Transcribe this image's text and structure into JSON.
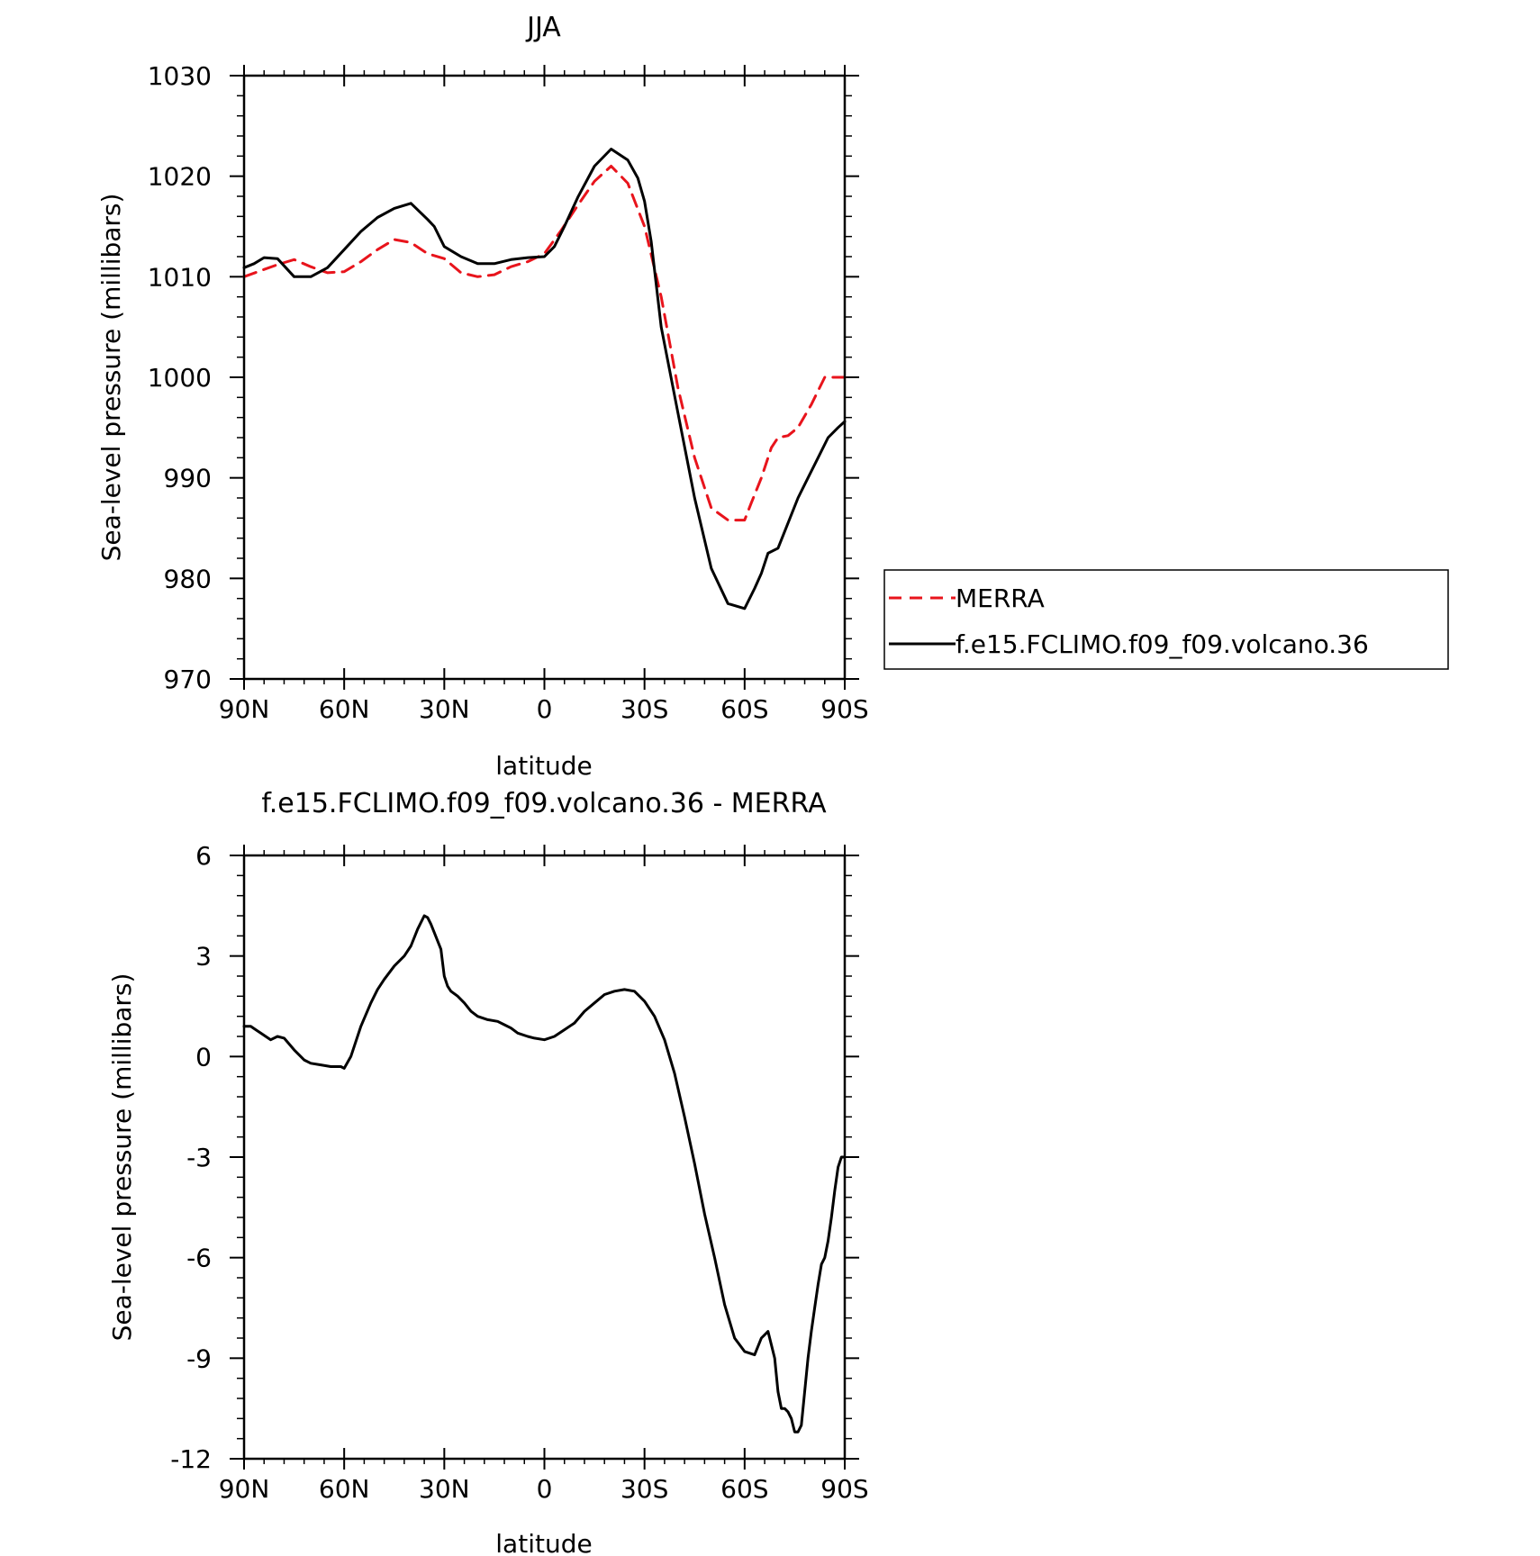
{
  "chart_data": [
    {
      "type": "line",
      "title": "JJA",
      "xlabel": "latitude",
      "ylabel": "Sea-level pressure (millibars)",
      "xlim": [
        90,
        -90
      ],
      "ylim": [
        970,
        1030
      ],
      "xticks": [
        {
          "value": 90,
          "label": "90N"
        },
        {
          "value": 60,
          "label": "60N"
        },
        {
          "value": 30,
          "label": "30N"
        },
        {
          "value": 0,
          "label": "0"
        },
        {
          "value": -30,
          "label": "30S"
        },
        {
          "value": -60,
          "label": "60S"
        },
        {
          "value": -90,
          "label": "90S"
        }
      ],
      "yticks": [
        {
          "value": 1030,
          "label": "1030"
        },
        {
          "value": 1020,
          "label": "1020"
        },
        {
          "value": 1010,
          "label": "1010"
        },
        {
          "value": 1000,
          "label": "1000"
        },
        {
          "value": 990,
          "label": "990"
        },
        {
          "value": 980,
          "label": "980"
        },
        {
          "value": 970,
          "label": "970"
        }
      ],
      "grid": false,
      "legend_position": "right",
      "series": [
        {
          "name": "MERRA",
          "color": "#e8141c",
          "dash": "dashed",
          "x": [
            90,
            85,
            80,
            75,
            70,
            65,
            60,
            55,
            50,
            45,
            40,
            35,
            30,
            25,
            20,
            15,
            10,
            5,
            0,
            -5,
            -10,
            -15,
            -20,
            -25,
            -30,
            -35,
            -40,
            -45,
            -50,
            -55,
            -60,
            -62,
            -65,
            -68,
            -70,
            -73,
            -76,
            -80,
            -84,
            -87,
            -90
          ],
          "y": [
            1010.0,
            1010.6,
            1011.2,
            1011.7,
            1011.0,
            1010.4,
            1010.5,
            1011.5,
            1012.7,
            1013.7,
            1013.4,
            1012.3,
            1011.8,
            1010.4,
            1010.0,
            1010.2,
            1011.0,
            1011.5,
            1012.3,
            1014.6,
            1017.1,
            1019.5,
            1021.0,
            1019.3,
            1015.0,
            1008.0,
            999.0,
            992.0,
            987.0,
            985.8,
            985.8,
            987.5,
            990.0,
            993.0,
            994.0,
            994.2,
            995.0,
            997.3,
            1000.0,
            1000.0,
            1000.0
          ]
        },
        {
          "name": "f.e15.FCLIMO.f09_f09.volcano.36",
          "color": "#000000",
          "dash": "solid",
          "x": [
            90,
            87,
            84,
            80,
            75,
            70,
            65,
            60,
            55,
            50,
            45,
            40,
            35,
            33,
            30,
            25,
            20,
            15,
            10,
            5,
            0,
            -3,
            -6,
            -10,
            -15,
            -20,
            -25,
            -28,
            -30,
            -32,
            -35,
            -40,
            -45,
            -50,
            -55,
            -60,
            -63,
            -65,
            -67,
            -70,
            -73,
            -76,
            -79,
            -82,
            -85,
            -88,
            -90
          ],
          "y": [
            1010.9,
            1011.3,
            1011.9,
            1011.8,
            1010.0,
            1010.0,
            1010.9,
            1012.7,
            1014.5,
            1015.9,
            1016.8,
            1017.3,
            1015.7,
            1015.0,
            1013.0,
            1012.0,
            1011.3,
            1011.3,
            1011.7,
            1011.9,
            1012.0,
            1013.0,
            1015.0,
            1017.9,
            1021.0,
            1022.7,
            1021.6,
            1019.8,
            1017.5,
            1013.5,
            1005.0,
            996.5,
            988.0,
            981.0,
            977.5,
            977.0,
            979.0,
            980.5,
            982.5,
            983.0,
            985.5,
            988.0,
            990.0,
            992.0,
            994.0,
            995.0,
            995.6
          ]
        }
      ]
    },
    {
      "type": "line",
      "title": "f.e15.FCLIMO.f09_f09.volcano.36 - MERRA",
      "xlabel": "latitude",
      "ylabel": "Sea-level pressure (millibars)",
      "xlim": [
        90,
        -90
      ],
      "ylim": [
        -12,
        6
      ],
      "xticks": [
        {
          "value": 90,
          "label": "90N"
        },
        {
          "value": 60,
          "label": "60N"
        },
        {
          "value": 30,
          "label": "30N"
        },
        {
          "value": 0,
          "label": "0"
        },
        {
          "value": -30,
          "label": "30S"
        },
        {
          "value": -60,
          "label": "60S"
        },
        {
          "value": -90,
          "label": "90S"
        }
      ],
      "yticks": [
        {
          "value": 6,
          "label": "6"
        },
        {
          "value": 3,
          "label": "3"
        },
        {
          "value": 0,
          "label": "0"
        },
        {
          "value": -3,
          "label": "-3"
        },
        {
          "value": -6,
          "label": "-6"
        },
        {
          "value": -9,
          "label": "-9"
        },
        {
          "value": -12,
          "label": "-12"
        }
      ],
      "grid": false,
      "series": [
        {
          "color": "#000000",
          "dash": "solid",
          "x": [
            90,
            88,
            85,
            82,
            80,
            78,
            75,
            72,
            70,
            67,
            64,
            61,
            60,
            58,
            55,
            52,
            50,
            48,
            45,
            42,
            40,
            38,
            36,
            35,
            34,
            33,
            31,
            30,
            29,
            28,
            26,
            24,
            22,
            20,
            17,
            14,
            12,
            10,
            8,
            5,
            3,
            0,
            -3,
            -6,
            -9,
            -12,
            -15,
            -18,
            -21,
            -24,
            -27,
            -30,
            -33,
            -36,
            -39,
            -42,
            -45,
            -48,
            -51,
            -54,
            -57,
            -60,
            -63,
            -65,
            -66,
            -67,
            -68,
            -69,
            -70,
            -71,
            -72,
            -73,
            -74,
            -75,
            -76,
            -77,
            -78,
            -79,
            -80,
            -81,
            -82,
            -83,
            -84,
            -85,
            -86,
            -87,
            -88,
            -89,
            -90
          ],
          "y": [
            0.9,
            0.9,
            0.7,
            0.5,
            0.6,
            0.55,
            0.2,
            -0.1,
            -0.2,
            -0.25,
            -0.3,
            -0.3,
            -0.35,
            0.0,
            0.9,
            1.6,
            2.0,
            2.3,
            2.7,
            3.0,
            3.3,
            3.8,
            4.2,
            4.15,
            3.95,
            3.7,
            3.2,
            2.4,
            2.1,
            1.95,
            1.8,
            1.6,
            1.35,
            1.2,
            1.1,
            1.05,
            0.95,
            0.85,
            0.7,
            0.6,
            0.55,
            0.5,
            0.6,
            0.8,
            1.0,
            1.35,
            1.6,
            1.85,
            1.95,
            2.0,
            1.95,
            1.65,
            1.2,
            0.5,
            -0.5,
            -1.8,
            -3.2,
            -4.7,
            -6.0,
            -7.4,
            -8.4,
            -8.8,
            -8.9,
            -8.4,
            -8.3,
            -8.2,
            -8.6,
            -9.0,
            -10.0,
            -10.5,
            -10.5,
            -10.6,
            -10.8,
            -11.2,
            -11.2,
            -11.0,
            -10.0,
            -9.0,
            -8.2,
            -7.5,
            -6.8,
            -6.2,
            -6.0,
            -5.5,
            -4.8,
            -4.0,
            -3.3,
            -3.0,
            -3.0
          ]
        }
      ]
    }
  ]
}
